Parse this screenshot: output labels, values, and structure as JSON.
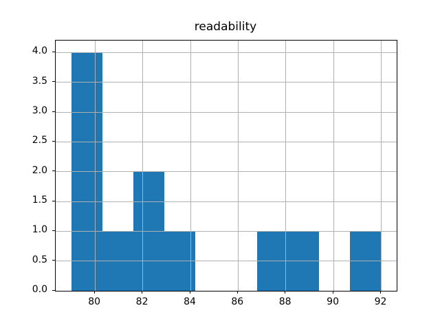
{
  "chart_data": {
    "type": "histogram",
    "title": "readability",
    "xlabel": "",
    "ylabel": "",
    "bin_edges": [
      79.0,
      80.3,
      81.6,
      82.9,
      84.2,
      85.5,
      86.8,
      88.1,
      89.4,
      90.7,
      92.0
    ],
    "counts": [
      4,
      1,
      2,
      1,
      0,
      0,
      1,
      1,
      0,
      1
    ],
    "xlim": [
      78.35,
      92.65
    ],
    "ylim": [
      0,
      4.2
    ],
    "x_ticks": [
      80,
      82,
      84,
      86,
      88,
      90,
      92
    ],
    "x_tick_labels": [
      "80",
      "82",
      "84",
      "86",
      "88",
      "90",
      "92"
    ],
    "y_ticks": [
      0.0,
      0.5,
      1.0,
      1.5,
      2.0,
      2.5,
      3.0,
      3.5,
      4.0
    ],
    "y_tick_labels": [
      "0.0",
      "0.5",
      "1.0",
      "1.5",
      "2.0",
      "2.5",
      "3.0",
      "3.5",
      "4.0"
    ],
    "grid": true,
    "legend": null,
    "bar_color": "#1f77b4",
    "grid_color": "#b0b0b0",
    "spine_color": "#000000",
    "text_color": "#000000",
    "background_color": "#ffffff"
  }
}
